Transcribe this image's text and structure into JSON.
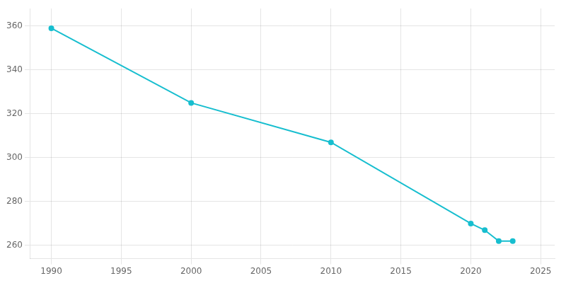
{
  "chart_data": {
    "type": "line",
    "x": [
      1990,
      2000,
      2010,
      2020,
      2021,
      2022,
      2023
    ],
    "values": [
      359,
      325,
      307,
      270,
      267,
      262,
      262
    ],
    "color": "#17BECF",
    "marker": "circle",
    "xlim": [
      1988.5,
      2026
    ],
    "xticks": [
      1990,
      1995,
      2000,
      2005,
      2010,
      2015,
      2020,
      2025
    ],
    "ylim": [
      254,
      368
    ],
    "yticks": [
      260,
      280,
      300,
      320,
      340,
      360
    ],
    "grid": true
  }
}
